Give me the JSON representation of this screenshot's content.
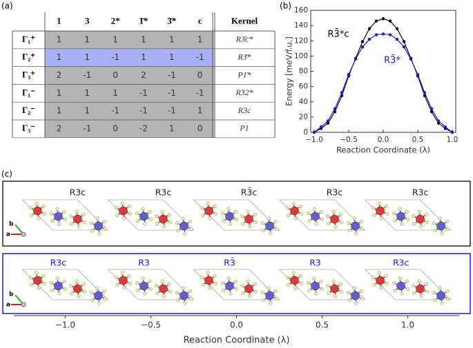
{
  "panel_labels": [
    "(a)",
    "(b)",
    "(c)"
  ],
  "table": {
    "header": [
      "1",
      "3",
      "2*",
      "1̄*",
      "3̄*",
      "c",
      "Kernel"
    ],
    "highlighted_row": 1,
    "rows": [
      {
        "irrep": "Γ₁⁺",
        "values": [
          1,
          1,
          1,
          1,
          1,
          1
        ],
        "kernel": "R3̄c*"
      },
      {
        "irrep": "Γ₂⁺",
        "values": [
          1,
          1,
          -1,
          1,
          1,
          -1
        ],
        "kernel": "R3̄*"
      },
      {
        "irrep": "Γ₃⁺",
        "values": [
          2,
          -1,
          0,
          2,
          -1,
          0
        ],
        "kernel": "P1̄*"
      },
      {
        "irrep": "Γ₁⁻",
        "values": [
          1,
          1,
          1,
          -1,
          -1,
          -1
        ],
        "kernel": "R32*"
      },
      {
        "irrep": "Γ₂⁻",
        "values": [
          1,
          1,
          -1,
          -1,
          -1,
          1
        ],
        "kernel": "R3c"
      },
      {
        "irrep": "Γ₃⁻",
        "values": [
          2,
          -1,
          0,
          -2,
          1,
          0
        ],
        "kernel": "P1"
      }
    ]
  },
  "chart_data": {
    "type": "line",
    "x_label": "Reaction Coordinate (λ)",
    "y_label": "Energy [meV/f.u.]",
    "x": [
      -1,
      -0.9,
      -0.8,
      -0.7,
      -0.6,
      -0.5,
      -0.4,
      -0.3,
      -0.2,
      -0.1,
      0,
      0.1,
      0.2,
      0.3,
      0.4,
      0.5,
      0.6,
      0.7,
      0.8,
      0.9,
      1
    ],
    "series": [
      {
        "name": "R3̄*c",
        "color": "#000000",
        "values": [
          0,
          5,
          12,
          27,
          48,
          74,
          97,
          119,
          136,
          146,
          149,
          146,
          136,
          119,
          97,
          74,
          48,
          27,
          12,
          5,
          0
        ]
      },
      {
        "name": "R3̄*",
        "color": "#1a1adb",
        "values": [
          0,
          7,
          15,
          31,
          52,
          76,
          96,
          112,
          122,
          128,
          129,
          128,
          122,
          112,
          96,
          76,
          52,
          31,
          15,
          7,
          0
        ]
      }
    ],
    "annotations": [
      {
        "text": "R3̄*c",
        "color": "#000000"
      },
      {
        "text": "R3̄*",
        "color": "#1a1adb"
      }
    ],
    "xlim": [
      -1.05,
      1.05
    ],
    "ylim": [
      0,
      160
    ],
    "xticks": [
      {
        "value": -1,
        "label": "−1.0"
      },
      {
        "value": -0.5,
        "label": "−0.5"
      },
      {
        "value": 0,
        "label": "0.0"
      },
      0.5,
      {
        "value": 1,
        "label": "1.0"
      }
    ],
    "yticks": [
      0,
      20,
      40,
      60,
      80,
      100,
      120,
      140,
      160
    ]
  },
  "structures": {
    "top_labels": [
      "R3c",
      "R3c",
      "R3̄c",
      "R3c",
      "R3c"
    ],
    "bottom_labels": [
      "R3c",
      "R3",
      "R3̄",
      "R3",
      "R3c"
    ],
    "lattice_axes": [
      "b",
      "a"
    ],
    "x_label": "Reaction Coordinate (λ)",
    "xlim": [
      -1.3,
      1.3
    ],
    "xticks": [
      {
        "value": -1,
        "label": "−1.0"
      },
      {
        "value": -0.5,
        "label": "−0.5"
      },
      {
        "value": 0,
        "label": "0.0"
      },
      0.5,
      {
        "value": 1,
        "label": "1.0"
      }
    ]
  }
}
